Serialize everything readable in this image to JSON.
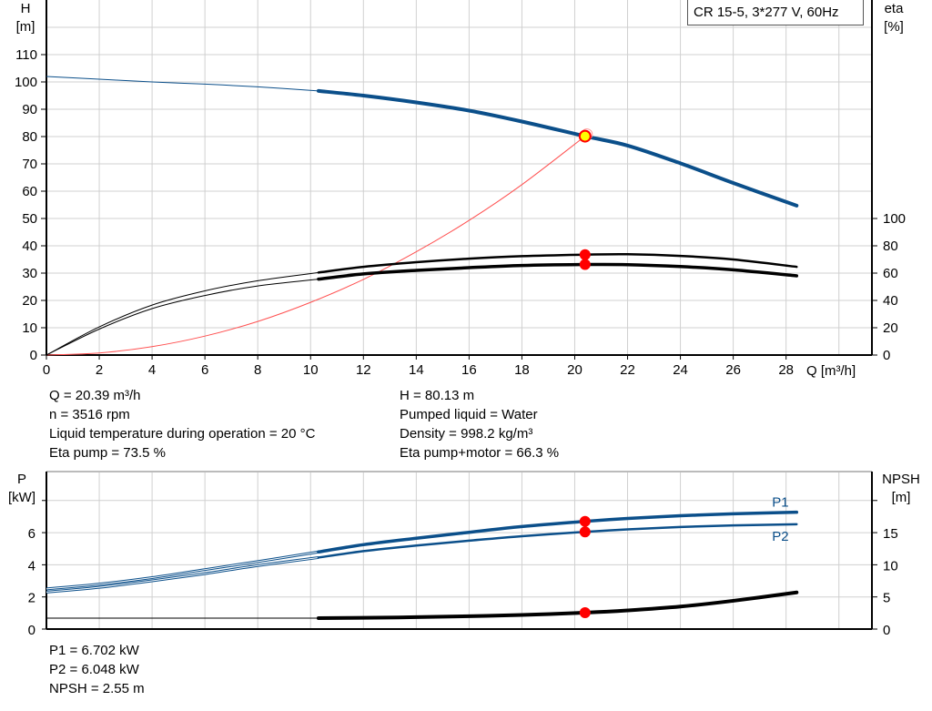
{
  "title": "CR 15-5, 3*277 V, 60Hz",
  "top_info": {
    "left": [
      "Q = 20.39 m³/h",
      "n = 3516 rpm",
      "Liquid temperature during operation = 20 °C",
      "Eta pump = 73.5 %"
    ],
    "right": [
      "H = 80.13 m",
      "Pumped liquid = Water",
      "Density = 998.2 kg/m³",
      "Eta pump+motor = 66.3 %"
    ]
  },
  "bottom_info": [
    "P1 = 6.702 kW",
    "P2 = 6.048 kW",
    "NPSH = 2.55 m"
  ],
  "chart_data": [
    {
      "type": "line",
      "xlabel": "Q [m³/h]",
      "ylabel": [
        "H",
        "[m]"
      ],
      "y2label": [
        "eta",
        "[%]"
      ],
      "xlim": [
        0,
        31.25
      ],
      "ylim": [
        0,
        130
      ],
      "y2lim": [
        0,
        260
      ],
      "grid": true,
      "x_ticks": [
        0,
        2,
        4,
        6,
        8,
        10,
        12,
        14,
        16,
        18,
        20,
        22,
        24,
        26,
        28
      ],
      "y_ticks": [
        0,
        10,
        20,
        30,
        40,
        50,
        60,
        70,
        80,
        90,
        100,
        110
      ],
      "y2_ticks": [
        0,
        20,
        40,
        60,
        80,
        100
      ],
      "operating_range": [
        10.3,
        28.4
      ],
      "colors": {
        "head": "#0b4f8a",
        "efficiency": "#000000",
        "system": "#ff5050",
        "point": "#ff0000",
        "duty_fill": "#ffff00"
      },
      "series": [
        {
          "key": "H",
          "axis": "left",
          "x": [
            0,
            2,
            4,
            6,
            8,
            10.3,
            12,
            14,
            16,
            18,
            20.39,
            22,
            24,
            26,
            28.4
          ],
          "y": [
            102,
            101,
            100,
            99.2,
            98.2,
            96.7,
            95,
            92.5,
            89.5,
            85.5,
            80.13,
            76.7,
            70.2,
            63,
            54.7
          ]
        },
        {
          "key": "eta_pump",
          "axis": "right",
          "x": [
            0,
            2,
            4,
            6,
            8,
            10.3,
            12,
            14,
            16,
            18,
            20.39,
            22,
            24,
            26,
            28.4
          ],
          "y": [
            0,
            20.6,
            36.6,
            47,
            54.4,
            60.4,
            64.6,
            68,
            70.6,
            72.4,
            73.5,
            73.8,
            72.6,
            70,
            64.6
          ]
        },
        {
          "key": "eta_pump_motor",
          "axis": "right",
          "x": [
            0,
            2,
            4,
            6,
            8,
            10.3,
            12,
            14,
            16,
            18,
            20.39,
            22,
            24,
            26,
            28.4
          ],
          "y": [
            0,
            19,
            34,
            43.6,
            50.6,
            55.6,
            59.4,
            62,
            64,
            65.6,
            66.3,
            66.2,
            64.8,
            62.4,
            58
          ]
        },
        {
          "key": "system_curve",
          "axis": "left",
          "x": [
            0,
            2,
            4,
            6,
            8,
            10,
            12,
            14,
            16,
            18,
            20.39
          ],
          "y": [
            0,
            0.77,
            3.08,
            6.94,
            12.3,
            19.3,
            27.7,
            37.8,
            49.3,
            62.4,
            80.13
          ]
        }
      ],
      "duty_point": {
        "Q": 20.39,
        "H": 80.13,
        "eta_pump": 73.5,
        "eta_pump_motor": 66.3
      }
    },
    {
      "type": "line",
      "ylabel": [
        "P",
        "[kW]"
      ],
      "y2label": [
        "NPSH",
        "[m]"
      ],
      "xlim": [
        0,
        31.25
      ],
      "ylim": [
        0,
        9.8
      ],
      "y2lim": [
        0,
        24.5
      ],
      "grid": true,
      "y_ticks": [
        0,
        2,
        4,
        6,
        8
      ],
      "y_tick_labels": [
        "0",
        "2",
        "4",
        "6",
        ""
      ],
      "y2_ticks": [
        0,
        5,
        10,
        15,
        20
      ],
      "y2_tick_labels": [
        "0",
        "5",
        "10",
        "15",
        ""
      ],
      "operating_range": [
        10.3,
        28.4
      ],
      "series": [
        {
          "key": "P1",
          "name": "P1",
          "axis": "left",
          "x": [
            0,
            2,
            4,
            6,
            8,
            10.3,
            12,
            14,
            16,
            18,
            20.39,
            22,
            24,
            26,
            28.4
          ],
          "y": [
            2.5,
            2.8,
            3.2,
            3.7,
            4.2,
            4.8,
            5.25,
            5.65,
            6.02,
            6.38,
            6.702,
            6.88,
            7.05,
            7.17,
            7.27
          ]
        },
        {
          "key": "P2",
          "name": "P2",
          "axis": "left",
          "x": [
            0,
            2,
            4,
            6,
            8,
            10.3,
            12,
            14,
            16,
            18,
            20.39,
            22,
            24,
            26,
            28.4
          ],
          "y": [
            2.3,
            2.6,
            3.0,
            3.45,
            3.95,
            4.45,
            4.85,
            5.2,
            5.5,
            5.78,
            6.048,
            6.2,
            6.35,
            6.45,
            6.52
          ]
        },
        {
          "key": "NPSH",
          "axis": "right",
          "x": [
            0,
            4,
            8,
            10.3,
            12,
            14,
            16,
            18,
            20.39,
            22,
            24,
            26,
            28.4
          ],
          "y": [
            1.7,
            1.7,
            1.7,
            1.7,
            1.75,
            1.85,
            2.0,
            2.2,
            2.55,
            2.9,
            3.5,
            4.4,
            5.7
          ]
        }
      ],
      "duty_point": {
        "Q": 20.39,
        "P1": 6.702,
        "P2": 6.048,
        "NPSH": 2.55
      }
    }
  ]
}
